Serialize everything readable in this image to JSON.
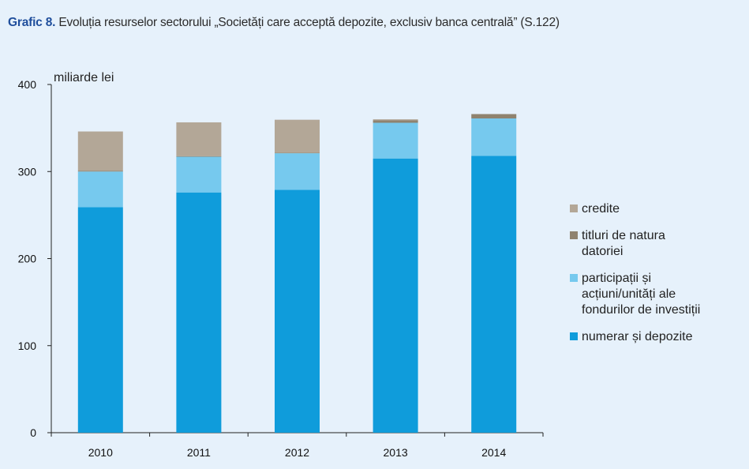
{
  "header": {
    "figure_label": "Grafic 8.",
    "title": "Evoluția resurselor sectorului „Societăți care acceptă depozite, exclusiv banca centrală” (S.122)"
  },
  "chart_data": {
    "type": "bar",
    "stacked": true,
    "categories": [
      "2010",
      "2011",
      "2012",
      "2013",
      "2014"
    ],
    "y_unit_label": "miliarde lei",
    "ylim": [
      0,
      400
    ],
    "yticks": [
      0,
      100,
      200,
      300,
      400
    ],
    "grid": false,
    "legend_position": "right",
    "series": [
      {
        "name": "numerar și depozite",
        "color": "#0f9cdb",
        "values": [
          259,
          276,
          279,
          315,
          318
        ]
      },
      {
        "name": "participații și acțiuni/unități ale fondurilor de investiții",
        "color": "#76c9ee",
        "values": [
          41,
          41,
          42,
          41,
          43
        ]
      },
      {
        "name": "titluri de natura datoriei",
        "color": "#8f836f",
        "values": [
          1,
          0.5,
          0.5,
          3,
          5
        ]
      },
      {
        "name": "credite",
        "color": "#b3a797",
        "values": [
          45,
          39,
          38,
          1,
          0
        ]
      }
    ],
    "legend": [
      {
        "lines": [
          "credite"
        ],
        "color": "#b3a797"
      },
      {
        "lines": [
          "titluri de natura",
          "datoriei"
        ],
        "color": "#8f836f"
      },
      {
        "lines": [
          "participații și",
          "acțiuni/unități ale",
          "fondurilor de investiții"
        ],
        "color": "#76c9ee"
      },
      {
        "lines": [
          "numerar și depozite"
        ],
        "color": "#0f9cdb"
      }
    ]
  }
}
